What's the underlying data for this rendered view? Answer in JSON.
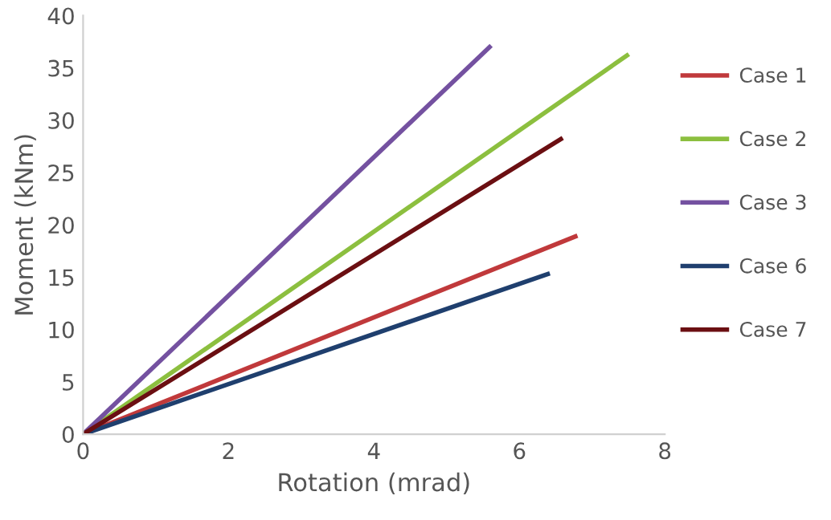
{
  "chart_data": {
    "type": "line",
    "xlabel": "Rotation (mrad)",
    "ylabel": "Moment (kNm)",
    "xlim": [
      0,
      8
    ],
    "xticks": [
      0,
      2,
      4,
      6,
      8
    ],
    "ylim": [
      0,
      40
    ],
    "yticks": [
      0,
      5,
      10,
      15,
      20,
      25,
      30,
      35,
      40
    ],
    "grid": false,
    "legend": "right",
    "marker": "none",
    "line_style": "solid",
    "series": [
      {
        "name": "Case 1",
        "color": "#c0393b",
        "x": [
          0,
          6.77
        ],
        "values": [
          0,
          18.9
        ]
      },
      {
        "name": "Case 2",
        "color": "#8cbf3f",
        "x": [
          0,
          7.48
        ],
        "values": [
          0,
          36.2
        ]
      },
      {
        "name": "Case 3",
        "color": "#7451a0",
        "x": [
          0,
          5.59
        ],
        "values": [
          0,
          37.0
        ]
      },
      {
        "name": "Case 6",
        "color": "#1f3f6e",
        "x": [
          0,
          6.39
        ],
        "values": [
          0,
          15.3
        ]
      },
      {
        "name": "Case 7",
        "color": "#6b0f12",
        "x": [
          0,
          6.57
        ],
        "values": [
          0,
          28.2
        ]
      }
    ]
  }
}
